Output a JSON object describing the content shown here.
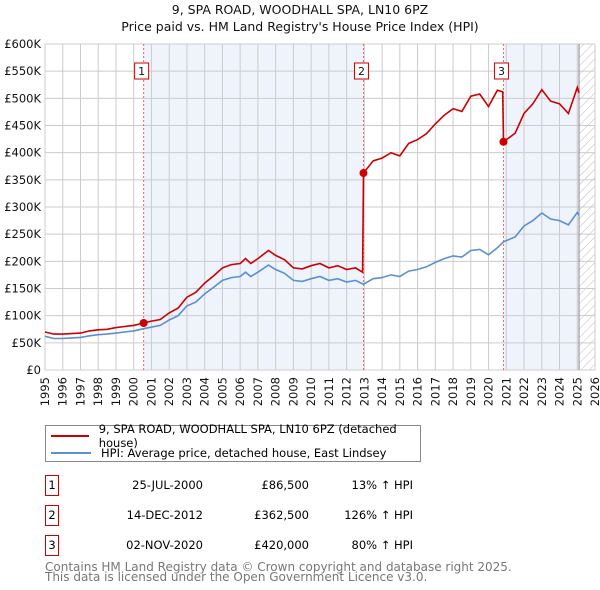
{
  "chart_data": {
    "type": "line",
    "title": "9, SPA ROAD, WOODHALL SPA, LN10 6PZ",
    "subtitle": "Price paid vs. HM Land Registry's House Price Index (HPI)",
    "xlim": [
      1995,
      2026
    ],
    "ylim": [
      0,
      600000
    ],
    "x_ticks": [
      "1995",
      "1996",
      "1997",
      "1998",
      "1999",
      "2000",
      "2001",
      "2002",
      "2003",
      "2004",
      "2005",
      "2006",
      "2007",
      "2008",
      "2009",
      "2010",
      "2011",
      "2012",
      "2013",
      "2014",
      "2015",
      "2016",
      "2017",
      "2018",
      "2019",
      "2020",
      "2021",
      "2022",
      "2023",
      "2024",
      "2025",
      "2026"
    ],
    "y_ticks": [
      {
        "value": 0,
        "label": "£0"
      },
      {
        "value": 50000,
        "label": "£50K"
      },
      {
        "value": 100000,
        "label": "£100K"
      },
      {
        "value": 150000,
        "label": "£150K"
      },
      {
        "value": 200000,
        "label": "£200K"
      },
      {
        "value": 250000,
        "label": "£250K"
      },
      {
        "value": 300000,
        "label": "£300K"
      },
      {
        "value": 350000,
        "label": "£350K"
      },
      {
        "value": 400000,
        "label": "£400K"
      },
      {
        "value": 450000,
        "label": "£450K"
      },
      {
        "value": 500000,
        "label": "£500K"
      },
      {
        "value": 550000,
        "label": "£550K"
      },
      {
        "value": 600000,
        "label": "£600K"
      }
    ],
    "grid": true,
    "shaded_ranges": [
      [
        2000.56,
        2012.95
      ],
      [
        2020.84,
        2025.1
      ]
    ],
    "forecast_hatch_from": 2025.1,
    "series": [
      {
        "name": "9, SPA ROAD, WOODHALL SPA, LN10 6PZ (detached house)",
        "color": "#cc0000",
        "x": [
          1995,
          1995.5,
          1996,
          1996.5,
          1997,
          1997.5,
          1998,
          1998.5,
          1999,
          1999.5,
          2000,
          2000.56,
          2001,
          2001.5,
          2002,
          2002.5,
          2003,
          2003.5,
          2004,
          2004.5,
          2005,
          2005.5,
          2006,
          2006.3,
          2006.6,
          2007,
          2007.6,
          2008,
          2008.5,
          2009,
          2009.5,
          2010,
          2010.5,
          2011,
          2011.5,
          2012,
          2012.5,
          2012.9,
          2012.95,
          2013.5,
          2014,
          2014.5,
          2015,
          2015.5,
          2016,
          2016.5,
          2017,
          2017.5,
          2018,
          2018.5,
          2019,
          2019.5,
          2020,
          2020.5,
          2020.8,
          2020.84,
          2021.5,
          2022,
          2022.5,
          2023,
          2023.5,
          2024,
          2024.5,
          2025,
          2025.1
        ],
        "y": [
          70,
          66,
          66,
          67,
          68,
          72,
          74,
          75,
          78,
          80,
          82,
          86.5,
          90,
          93,
          105,
          114,
          134,
          143,
          160,
          173,
          188,
          194,
          196,
          205,
          196,
          205,
          220,
          211,
          203,
          188,
          186,
          192,
          196,
          188,
          192,
          185,
          188,
          180,
          362.5,
          385,
          390,
          400,
          394,
          417,
          424,
          435,
          453,
          469,
          481,
          476,
          504,
          508,
          485,
          515,
          512,
          420,
          436,
          472,
          490,
          516,
          495,
          490,
          472,
          520,
          510
        ],
        "y_unit": "thousand GBP"
      },
      {
        "name": "HPI: Average price, detached house, East Lindsey",
        "color": "#5b8fd0",
        "x": [
          1995,
          1995.5,
          1996,
          1996.5,
          1997,
          1997.5,
          1998,
          1998.5,
          1999,
          1999.5,
          2000,
          2000.56,
          2001,
          2001.5,
          2002,
          2002.5,
          2003,
          2003.5,
          2004,
          2004.5,
          2005,
          2005.5,
          2006,
          2006.3,
          2006.6,
          2007,
          2007.6,
          2008,
          2008.5,
          2009,
          2009.5,
          2010,
          2010.5,
          2011,
          2011.5,
          2012,
          2012.5,
          2012.95,
          2013.5,
          2014,
          2014.5,
          2015,
          2015.5,
          2016,
          2016.5,
          2017,
          2017.5,
          2018,
          2018.5,
          2019,
          2019.5,
          2020,
          2020.5,
          2020.84,
          2021.5,
          2022,
          2022.5,
          2023,
          2023.5,
          2024,
          2024.5,
          2025,
          2025.1
        ],
        "y": [
          62,
          58,
          58,
          59,
          60,
          63,
          65,
          66,
          68,
          70,
          72,
          76,
          79,
          82,
          92,
          100,
          118,
          125,
          140,
          152,
          165,
          170,
          172,
          180,
          172,
          180,
          193,
          185,
          178,
          165,
          163,
          168,
          172,
          165,
          168,
          162,
          165,
          158,
          168,
          170,
          175,
          172,
          182,
          185,
          190,
          198,
          205,
          210,
          208,
          220,
          222,
          212,
          225,
          236,
          245,
          265,
          275,
          289,
          278,
          275,
          267,
          290,
          285
        ],
        "y_unit": "thousand GBP"
      }
    ],
    "sales": [
      {
        "label": "1",
        "x": 2000.56,
        "y": 86.5
      },
      {
        "label": "2",
        "x": 2012.95,
        "y": 362.5
      },
      {
        "label": "3",
        "x": 2020.84,
        "y": 420
      }
    ],
    "legend_placement": "below"
  },
  "title_line1": "9, SPA ROAD, WOODHALL SPA, LN10 6PZ",
  "title_line2": "Price paid vs. HM Land Registry's House Price Index (HPI)",
  "legend": {
    "property": "9, SPA ROAD, WOODHALL SPA, LN10 6PZ (detached house)",
    "hpi": "HPI: Average price, detached house, East Lindsey",
    "property_color": "#cc0000",
    "hpi_color": "#5b8fd0"
  },
  "transactions": [
    {
      "num": "1",
      "date": "25-JUL-2000",
      "price": "£86,500",
      "pct": "13% ↑ HPI"
    },
    {
      "num": "2",
      "date": "14-DEC-2012",
      "price": "£362,500",
      "pct": "126% ↑ HPI"
    },
    {
      "num": "3",
      "date": "02-NOV-2020",
      "price": "£420,000",
      "pct": "80% ↑ HPI"
    }
  ],
  "footer": {
    "line1": "Contains HM Land Registry data © Crown copyright and database right 2025.",
    "line2": "This data is licensed under the Open Government Licence v3.0."
  }
}
